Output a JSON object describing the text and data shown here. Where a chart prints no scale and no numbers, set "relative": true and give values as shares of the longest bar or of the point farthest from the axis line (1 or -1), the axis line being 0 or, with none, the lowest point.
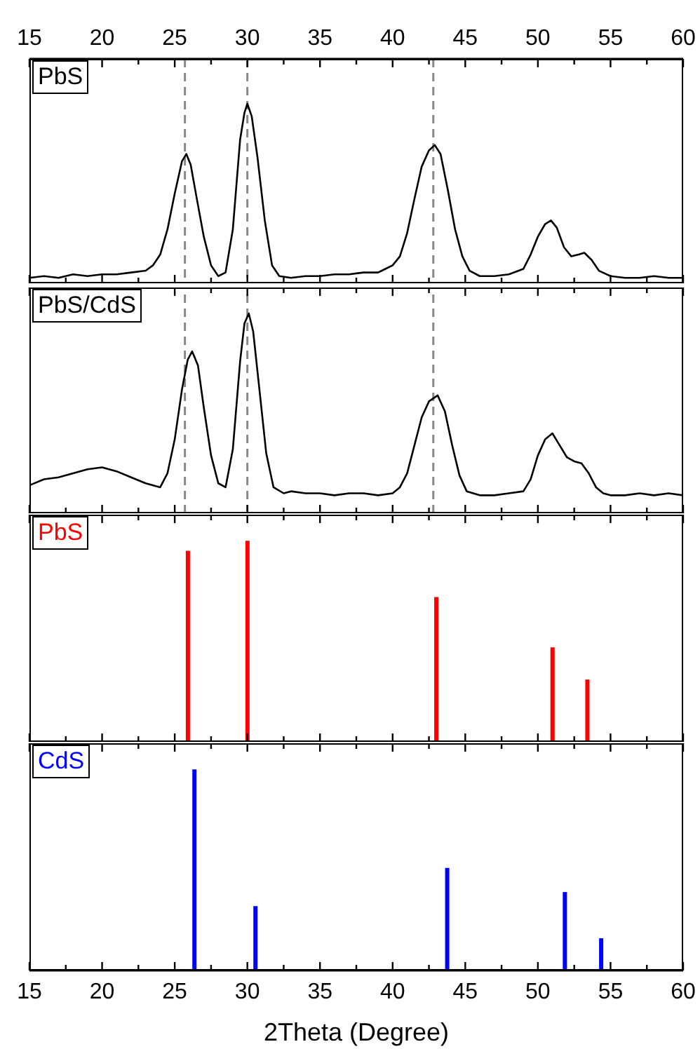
{
  "chart_data": [
    {
      "type": "line",
      "relative": true,
      "xlim": [
        15,
        60
      ],
      "xticks": [
        15,
        {
          "value": 17.5,
          "label": null
        },
        20,
        {
          "value": 22.5,
          "label": null
        },
        25,
        {
          "value": 27.5,
          "label": null
        },
        30,
        {
          "value": 32.5,
          "label": null
        },
        35,
        {
          "value": 37.5,
          "label": null
        },
        40,
        {
          "value": 42.5,
          "label": null
        },
        45,
        {
          "value": 47.5,
          "label": null
        },
        50,
        {
          "value": 52.5,
          "label": null
        },
        55,
        {
          "value": 57.5,
          "label": null
        },
        60
      ],
      "tick_labels": "x",
      "legend": "top left",
      "marker": "none",
      "line_style": "solid",
      "ref_lines": [
        {
          "axis": "x",
          "value": 25.7,
          "color": "#888888",
          "line_style": "dashed"
        },
        {
          "axis": "x",
          "value": 30,
          "color": "#888888",
          "line_style": "dashed"
        },
        {
          "axis": "x",
          "value": 42.8,
          "color": "#888888",
          "line_style": "dashed"
        }
      ],
      "series": [
        {
          "name": "PbS",
          "color": "#000000",
          "x": [
            15,
            16,
            17,
            18,
            19,
            20,
            21,
            22,
            23,
            23.5,
            24,
            24.5,
            25,
            25.5,
            25.8,
            26.1,
            26.5,
            27,
            27.5,
            28,
            28.5,
            29,
            29.5,
            29.8,
            30,
            30.3,
            30.7,
            31.2,
            31.7,
            32.2,
            33,
            34,
            35,
            36,
            37,
            38,
            39,
            39.5,
            40,
            40.5,
            41,
            41.5,
            42,
            42.5,
            42.9,
            43.3,
            43.8,
            44.3,
            44.8,
            45.3,
            46,
            47,
            48,
            49,
            49.5,
            50,
            50.5,
            50.9,
            51.3,
            51.8,
            52.3,
            52.8,
            53.2,
            53.7,
            54.2,
            55,
            56,
            57,
            58,
            59,
            60
          ],
          "values": [
            0.03,
            0.04,
            0.03,
            0.05,
            0.04,
            0.05,
            0.05,
            0.06,
            0.07,
            0.1,
            0.16,
            0.3,
            0.5,
            0.68,
            0.72,
            0.66,
            0.48,
            0.26,
            0.1,
            0.04,
            0.06,
            0.3,
            0.8,
            0.95,
            1,
            0.93,
            0.7,
            0.35,
            0.1,
            0.04,
            0.03,
            0.04,
            0.04,
            0.05,
            0.05,
            0.06,
            0.06,
            0.08,
            0.1,
            0.15,
            0.28,
            0.47,
            0.65,
            0.74,
            0.77,
            0.72,
            0.52,
            0.3,
            0.15,
            0.07,
            0.04,
            0.04,
            0.05,
            0.08,
            0.16,
            0.26,
            0.33,
            0.35,
            0.31,
            0.2,
            0.15,
            0.16,
            0.17,
            0.13,
            0.07,
            0.04,
            0.03,
            0.03,
            0.04,
            0.03,
            0.03
          ]
        }
      ]
    },
    {
      "type": "line",
      "relative": true,
      "xlim": [
        15,
        60
      ],
      "xticks": [
        15,
        {
          "value": 17.5,
          "label": null
        },
        20,
        {
          "value": 22.5,
          "label": null
        },
        25,
        {
          "value": 27.5,
          "label": null
        },
        30,
        {
          "value": 32.5,
          "label": null
        },
        35,
        {
          "value": 37.5,
          "label": null
        },
        40,
        {
          "value": 42.5,
          "label": null
        },
        45,
        {
          "value": 47.5,
          "label": null
        },
        50,
        {
          "value": 52.5,
          "label": null
        },
        55,
        {
          "value": 57.5,
          "label": null
        },
        60
      ],
      "tick_labels": false,
      "legend": "top left",
      "marker": "none",
      "line_style": "solid",
      "ref_lines": [
        {
          "axis": "x",
          "value": 25.7,
          "color": "#888888",
          "line_style": "dashed"
        },
        {
          "axis": "x",
          "value": 30,
          "color": "#888888",
          "line_style": "dashed"
        },
        {
          "axis": "x",
          "value": 42.8,
          "color": "#888888",
          "line_style": "dashed"
        }
      ],
      "series": [
        {
          "name": "PbS/CdS",
          "color": "#000000",
          "x": [
            15,
            16,
            17,
            18,
            19,
            20,
            21,
            22,
            23,
            24,
            24.5,
            25,
            25.5,
            25.9,
            26.2,
            26.6,
            27,
            27.5,
            28,
            28.5,
            29,
            29.5,
            29.8,
            30.1,
            30.4,
            30.8,
            31.3,
            31.8,
            32.5,
            33,
            34,
            35,
            36,
            37,
            38,
            39,
            40,
            40.5,
            41,
            41.5,
            42,
            42.5,
            43.1,
            43.6,
            44.1,
            44.6,
            45.1,
            46,
            47,
            48,
            49,
            49.5,
            50,
            50.5,
            51,
            51.5,
            52,
            52.5,
            53,
            53.5,
            54,
            54.5,
            55,
            56,
            57,
            58,
            59,
            60
          ],
          "values": [
            0.14,
            0.17,
            0.18,
            0.2,
            0.22,
            0.23,
            0.21,
            0.18,
            0.15,
            0.13,
            0.2,
            0.37,
            0.62,
            0.77,
            0.81,
            0.74,
            0.53,
            0.29,
            0.15,
            0.13,
            0.32,
            0.76,
            0.95,
            1,
            0.91,
            0.64,
            0.3,
            0.13,
            0.1,
            0.11,
            0.1,
            0.1,
            0.09,
            0.1,
            0.1,
            0.09,
            0.1,
            0.13,
            0.2,
            0.34,
            0.48,
            0.56,
            0.59,
            0.51,
            0.34,
            0.19,
            0.11,
            0.09,
            0.09,
            0.1,
            0.11,
            0.17,
            0.29,
            0.37,
            0.4,
            0.34,
            0.28,
            0.26,
            0.25,
            0.2,
            0.13,
            0.1,
            0.09,
            0.09,
            0.1,
            0.09,
            0.1,
            0.09
          ]
        }
      ]
    },
    {
      "type": "bar",
      "relative": true,
      "xlim": [
        15,
        60
      ],
      "xticks": [
        15,
        {
          "value": 17.5,
          "label": null
        },
        20,
        {
          "value": 22.5,
          "label": null
        },
        25,
        {
          "value": 27.5,
          "label": null
        },
        30,
        {
          "value": 32.5,
          "label": null
        },
        35,
        {
          "value": 37.5,
          "label": null
        },
        40,
        {
          "value": 42.5,
          "label": null
        },
        45,
        {
          "value": 47.5,
          "label": null
        },
        50,
        {
          "value": 52.5,
          "label": null
        },
        55,
        {
          "value": 57.5,
          "label": null
        },
        60
      ],
      "tick_labels": false,
      "legend": "top left",
      "series": [
        {
          "name": "PbS",
          "color": "#ff0000",
          "x": [
            25.9,
            30,
            43,
            51,
            53.4
          ],
          "values": [
            0.95,
            1,
            0.72,
            0.47,
            0.31
          ]
        }
      ]
    },
    {
      "type": "bar",
      "relative": true,
      "xlim": [
        15,
        60
      ],
      "xticks": [
        15,
        {
          "value": 17.5,
          "label": null
        },
        20,
        {
          "value": 22.5,
          "label": null
        },
        25,
        {
          "value": 27.5,
          "label": null
        },
        30,
        {
          "value": 32.5,
          "label": null
        },
        35,
        {
          "value": 37.5,
          "label": null
        },
        40,
        {
          "value": 42.5,
          "label": null
        },
        45,
        {
          "value": 47.5,
          "label": null
        },
        50,
        {
          "value": 52.5,
          "label": null
        },
        55,
        {
          "value": 57.5,
          "label": null
        },
        60
      ],
      "tick_labels": "x",
      "legend": "top left",
      "xlabel": "2Theta (Degree)",
      "series": [
        {
          "name": "CdS",
          "color": "#0000ff",
          "x": [
            26.4,
            30.6,
            43.8,
            51.9,
            54.4
          ],
          "values": [
            1,
            0.32,
            0.51,
            0.39,
            0.16
          ]
        }
      ]
    }
  ]
}
